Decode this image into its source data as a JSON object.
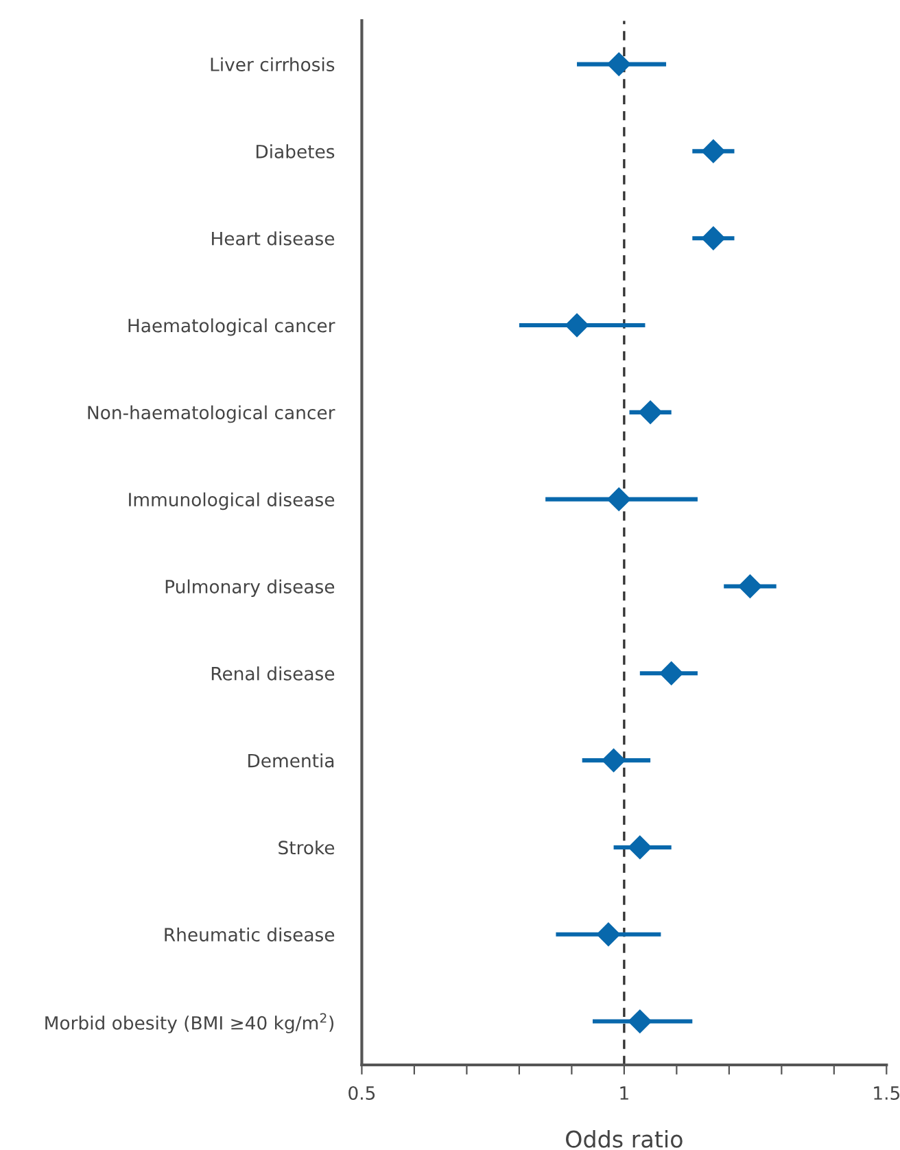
{
  "chart_data": {
    "type": "scatter",
    "orientation": "horizontal",
    "xlabel": "Odds ratio",
    "categories": [
      "Liver cirrhosis",
      "Diabetes",
      "Heart disease",
      "Haematological cancer",
      "Non-haematological cancer",
      "Immunological disease",
      "Pulmonary disease",
      "Renal disease",
      "Dementia",
      "Stroke",
      "Rheumatic disease",
      "Morbid obesity (BMI ≥40 kg/m$^{2}$)"
    ],
    "series": [
      {
        "color": "#0868ac",
        "values": [
          0.99,
          1.17,
          1.17,
          0.91,
          1.05,
          0.99,
          1.24,
          1.09,
          0.98,
          1.03,
          0.97,
          1.03
        ],
        "errors": [
          [
            0.91,
            1.08
          ],
          [
            1.13,
            1.21
          ],
          [
            1.13,
            1.21
          ],
          [
            0.8,
            1.04
          ],
          [
            1.01,
            1.09
          ],
          [
            0.85,
            1.14
          ],
          [
            1.19,
            1.29
          ],
          [
            1.03,
            1.14
          ],
          [
            0.92,
            1.05
          ],
          [
            0.98,
            1.09
          ],
          [
            0.87,
            1.07
          ],
          [
            0.94,
            1.13
          ]
        ]
      }
    ],
    "marker": "diamond",
    "xlim": [
      0.5,
      1.5
    ],
    "xticks": [
      0.5,
      {
        "value": 0.6,
        "label": null
      },
      {
        "value": 0.7,
        "label": null
      },
      {
        "value": 0.8,
        "label": null
      },
      {
        "value": 0.9,
        "label": null
      },
      1,
      {
        "value": 1.1,
        "label": null
      },
      {
        "value": 1.2,
        "label": null
      },
      {
        "value": 1.3,
        "label": null
      },
      {
        "value": 1.4,
        "label": null
      },
      1.5
    ],
    "ref_lines": [
      {
        "axis": "x",
        "value": 1,
        "color": "#333333",
        "line_style": "dashed"
      }
    ],
    "grid": false,
    "legend": false
  }
}
